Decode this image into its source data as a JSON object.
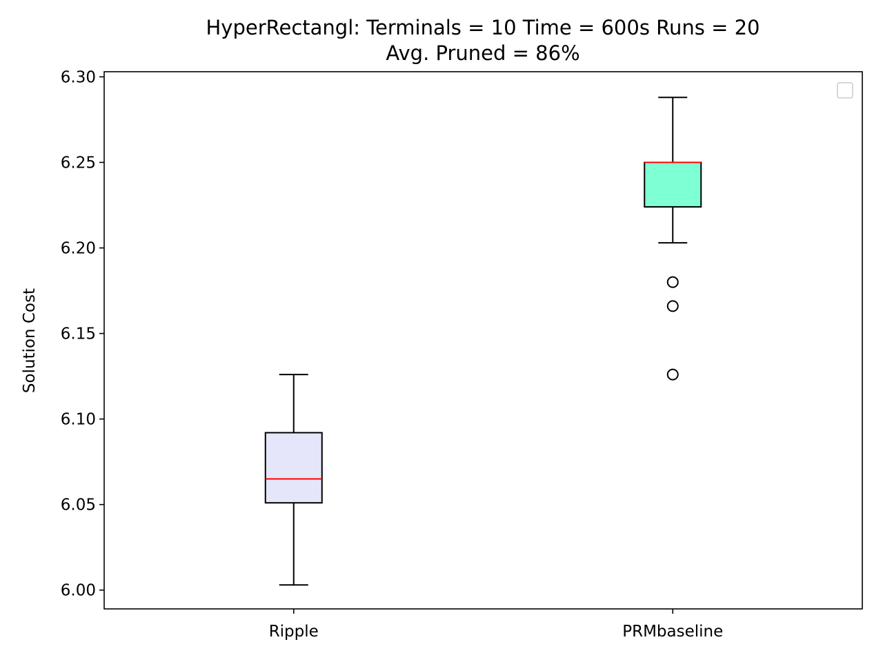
{
  "chart_data": {
    "type": "boxplot",
    "title_lines": [
      "HyperRectangl:  Terminals = 10  Time = 600s  Runs = 20",
      "Avg. Pruned = 86%"
    ],
    "xlabel": "",
    "ylabel": "Solution Cost",
    "categories": [
      "Ripple",
      "PRMbaseline"
    ],
    "ylim": [
      5.989,
      6.303
    ],
    "yticks": [
      6.0,
      6.05,
      6.1,
      6.15,
      6.2,
      6.25,
      6.3
    ],
    "ytick_labels": [
      "6.00",
      "6.05",
      "6.10",
      "6.15",
      "6.20",
      "6.25",
      "6.30"
    ],
    "grid": false,
    "legend": {
      "placement": "top-right",
      "entries": []
    },
    "median_color": "#ff0000",
    "boxes": [
      {
        "category": "Ripple",
        "whisker_low": 6.003,
        "q1": 6.051,
        "median": 6.065,
        "q3": 6.092,
        "whisker_high": 6.126,
        "outliers": [],
        "fill": "#e6e6fa"
      },
      {
        "category": "PRMbaseline",
        "whisker_low": 6.203,
        "q1": 6.224,
        "median": 6.25,
        "q3": 6.25,
        "whisker_high": 6.288,
        "outliers": [
          6.18,
          6.166,
          6.126
        ],
        "fill": "#7fffd4"
      }
    ]
  }
}
